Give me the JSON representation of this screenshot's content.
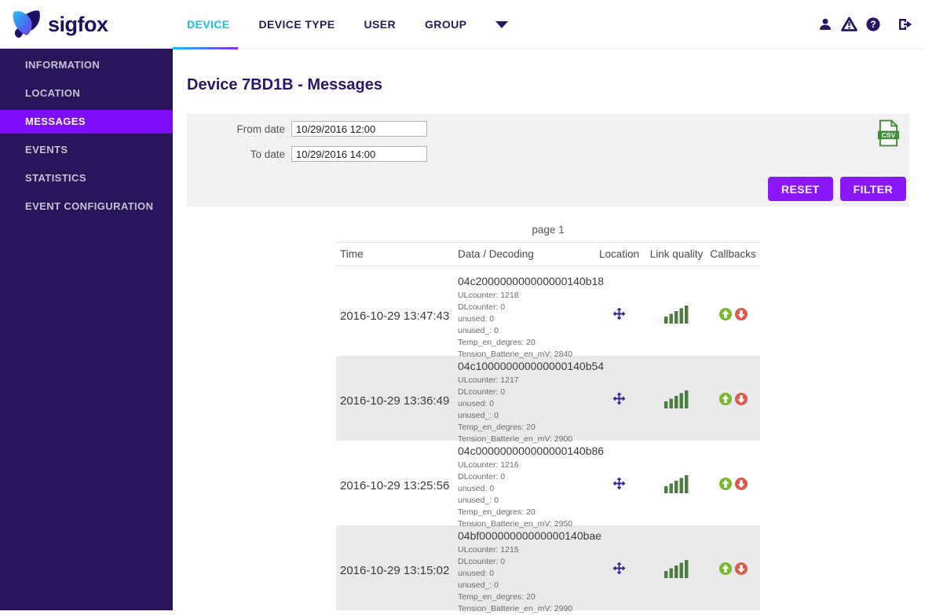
{
  "brand": {
    "name": "sigfox"
  },
  "header": {
    "nav": [
      {
        "label": "DEVICE",
        "active": true
      },
      {
        "label": "DEVICE TYPE",
        "active": false
      },
      {
        "label": "USER",
        "active": false
      },
      {
        "label": "GROUP",
        "active": false
      }
    ],
    "icons": [
      "user-icon",
      "alert-icon",
      "help-icon",
      "logout-icon"
    ]
  },
  "sidebar": {
    "items": [
      {
        "label": "INFORMATION",
        "active": false
      },
      {
        "label": "LOCATION",
        "active": false
      },
      {
        "label": "MESSAGES",
        "active": true
      },
      {
        "label": "EVENTS",
        "active": false
      },
      {
        "label": "STATISTICS",
        "active": false
      },
      {
        "label": "EVENT CONFIGURATION",
        "active": false
      }
    ]
  },
  "page": {
    "title": "Device 7BD1B - Messages",
    "pagination": "page 1"
  },
  "filter": {
    "from_label": "From date",
    "from_value": "10/29/2016 12:00",
    "to_label": "To date",
    "to_value": "10/29/2016 14:00",
    "reset_label": "RESET",
    "filter_label": "FILTER",
    "csv_label": "CSV"
  },
  "table": {
    "columns": [
      "Time",
      "Data / Decoding",
      "Location",
      "Link quality",
      "Callbacks"
    ],
    "row_icons": [
      "location-icon",
      "link-quality-icon",
      "callback-up-icon",
      "callback-down-icon"
    ],
    "link_quality_bars": 5,
    "rows": [
      {
        "time": "2016-10-29 13:47:43",
        "hex": "04c200000000000000140b18",
        "decoded": [
          "ULcounter: 1218",
          "DLcounter: 0",
          "unused: 0",
          "unused_: 0",
          "Temp_en_degres: 20",
          "Tension_Batterie_en_mV: 2840"
        ]
      },
      {
        "time": "2016-10-29 13:36:49",
        "hex": "04c100000000000000140b54",
        "decoded": [
          "ULcounter: 1217",
          "DLcounter: 0",
          "unused: 0",
          "unused_: 0",
          "Temp_en_degres: 20",
          "Tension_Batterie_en_mV: 2900"
        ]
      },
      {
        "time": "2016-10-29 13:25:56",
        "hex": "04c000000000000000140b86",
        "decoded": [
          "ULcounter: 1216",
          "DLcounter: 0",
          "unused: 0",
          "unused_: 0",
          "Temp_en_degres: 20",
          "Tension_Batterie_en_mV: 2950"
        ]
      },
      {
        "time": "2016-10-29 13:15:02",
        "hex": "04bf00000000000000140bae",
        "decoded": [
          "ULcounter: 1215",
          "DLcounter: 0",
          "unused: 0",
          "unused_: 0",
          "Temp_en_degres: 20",
          "Tension_Batterie_en_mV: 2990"
        ]
      }
    ]
  },
  "colors": {
    "brand_navy": "#1c1160",
    "nav_active_cyan": "#10c3f5",
    "accent_violet": "#8a18f8",
    "sidebar_bg": "#2a145c",
    "sidebar_active": "#7d0df8",
    "panel_gray": "#f1f1f1",
    "row_alt_gray": "#e9e9e9",
    "csv_green": "#3f8c3a",
    "signal_green": "#4b7e3e",
    "callback_up_green": "#76b82a",
    "callback_down_red": "#e2574c",
    "location_indigo": "#322093"
  }
}
